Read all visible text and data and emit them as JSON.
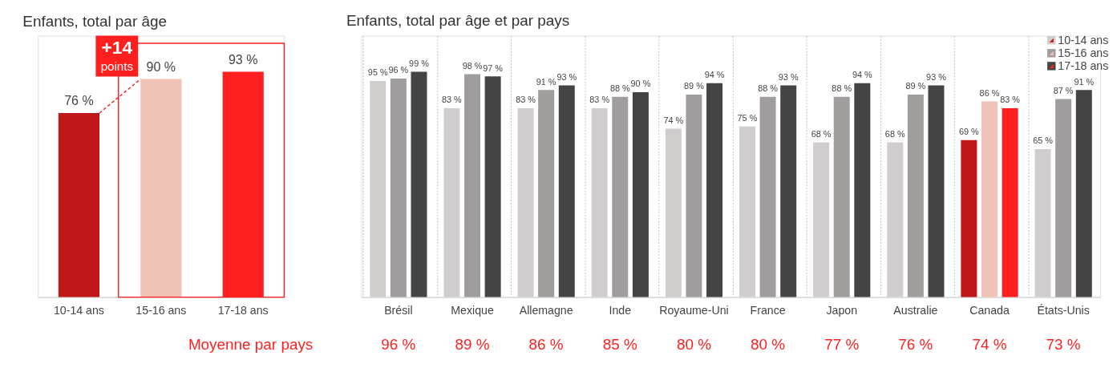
{
  "chart_data": [
    {
      "type": "bar",
      "title": "Enfants, total par âge",
      "categories": [
        "10-14 ans",
        "15-16 ans",
        "17-18 ans"
      ],
      "values": [
        76,
        90,
        93
      ],
      "colors": [
        "#c0181a",
        "#f0c3b8",
        "#ff1f1f"
      ],
      "value_labels": [
        "76 %",
        "90 %",
        "93 %"
      ],
      "annotations": [
        "+14 points"
      ]
    },
    {
      "type": "bar",
      "title": "Enfants, total par âge et par pays",
      "categories": [
        "Brésil",
        "Mexique",
        "Allemagne",
        "Inde",
        "Royaume-Uni",
        "France",
        "Japon",
        "Australie",
        "Canada",
        "États-Unis"
      ],
      "grid": "x",
      "legend": "top right",
      "series": [
        {
          "name": "10-14 ans",
          "color": "#d1cdcd",
          "colors": [
            "#d1cdcd",
            "#d1cdcd",
            "#d1cdcd",
            "#d1cdcd",
            "#d1cdcd",
            "#d1cdcd",
            "#d1cdcd",
            "#d1cdcd",
            "#c0181a",
            "#d1cdcd"
          ],
          "values": [
            95,
            83,
            83,
            83,
            74,
            75,
            68,
            68,
            69,
            65
          ],
          "value_labels": [
            "95 %",
            "83 %",
            "83 %",
            "83 %",
            "74 %",
            "75 %",
            "68 %",
            "68 %",
            "69 %",
            "65 %"
          ]
        },
        {
          "name": "15-16 ans",
          "color": "#a29d9d",
          "colors": [
            "#a29d9d",
            "#a29d9d",
            "#a29d9d",
            "#a29d9d",
            "#a29d9d",
            "#a29d9d",
            "#a29d9d",
            "#a29d9d",
            "#f0c3b8",
            "#a29d9d"
          ],
          "values": [
            96,
            98,
            91,
            88,
            89,
            88,
            88,
            89,
            86,
            87
          ],
          "value_labels": [
            "96 %",
            "98 %",
            "91 %",
            "88 %",
            "89 %",
            "88 %",
            "88 %",
            "89 %",
            "86 %",
            "87 %"
          ]
        },
        {
          "name": "17-18 ans",
          "color": "#444444",
          "colors": [
            "#444444",
            "#444444",
            "#444444",
            "#444444",
            "#444444",
            "#444444",
            "#444444",
            "#444444",
            "#ff1f1f",
            "#444444"
          ],
          "values": [
            99,
            97,
            93,
            90,
            94,
            93,
            94,
            93,
            83,
            91
          ],
          "value_labels": [
            "99 %",
            "97 %",
            "93 %",
            "90 %",
            "94 %",
            "93 %",
            "94 %",
            "93 %",
            "83 %",
            "91 %"
          ]
        }
      ],
      "annotations": [
        "Moyenne par pays",
        "96 %",
        "89 %",
        "86 %",
        "85 %",
        "80 %",
        "80 %",
        "77 %",
        "76 %",
        "74 %",
        "73 %"
      ]
    }
  ]
}
